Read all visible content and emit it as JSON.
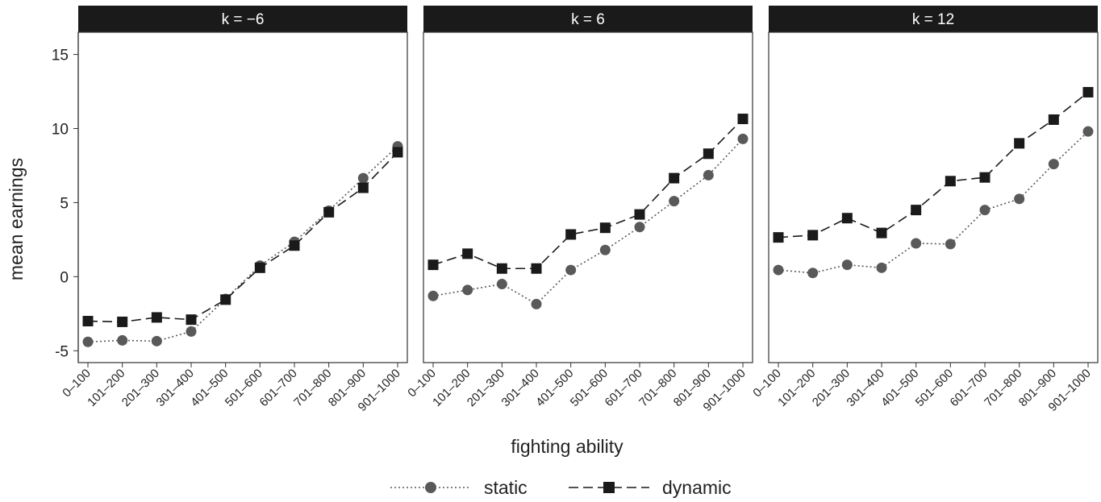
{
  "chart_data": {
    "type": "line",
    "xlabel": "fighting ability",
    "ylabel": "mean earnings",
    "ylim": [
      -5.8,
      16.5
    ],
    "yticks": [
      -5,
      0,
      5,
      10,
      15
    ],
    "ytick_labels": [
      "-5",
      "0",
      "5",
      "10",
      "15"
    ],
    "categories": [
      "0–100",
      "101–200",
      "201–300",
      "301–400",
      "401–500",
      "501–600",
      "601–700",
      "701–800",
      "801–900",
      "901–1000"
    ],
    "legend": {
      "position": "bottom",
      "entries": [
        "static",
        "dynamic"
      ]
    },
    "grid": false,
    "series_styles": {
      "static": {
        "color": "#595959",
        "marker": "circle",
        "dash": "dotted"
      },
      "dynamic": {
        "color": "#1a1a1a",
        "marker": "square",
        "dash": "dashed"
      }
    },
    "panels": [
      {
        "title": "k = −6",
        "series": [
          {
            "name": "static",
            "values": [
              -4.4,
              -4.3,
              -4.35,
              -3.7,
              -1.5,
              0.75,
              2.35,
              4.45,
              6.65,
              8.8
            ]
          },
          {
            "name": "dynamic",
            "values": [
              -3.0,
              -3.05,
              -2.75,
              -2.9,
              -1.55,
              0.6,
              2.1,
              4.35,
              6.0,
              8.4
            ]
          }
        ]
      },
      {
        "title": "k = 6",
        "series": [
          {
            "name": "static",
            "values": [
              -1.3,
              -0.9,
              -0.5,
              -1.85,
              0.45,
              1.8,
              3.35,
              5.1,
              6.85,
              9.3
            ]
          },
          {
            "name": "dynamic",
            "values": [
              0.8,
              1.55,
              0.55,
              0.55,
              2.85,
              3.3,
              4.2,
              6.65,
              8.3,
              10.65
            ]
          }
        ]
      },
      {
        "title": "k = 12",
        "series": [
          {
            "name": "static",
            "values": [
              0.45,
              0.25,
              0.8,
              0.6,
              2.25,
              2.2,
              4.5,
              5.25,
              7.6,
              9.8
            ]
          },
          {
            "name": "dynamic",
            "values": [
              2.65,
              2.8,
              3.95,
              2.95,
              4.5,
              6.45,
              6.7,
              9.0,
              10.6,
              12.45
            ]
          }
        ]
      }
    ]
  }
}
